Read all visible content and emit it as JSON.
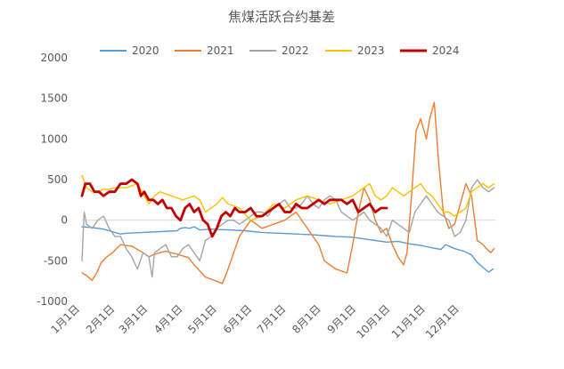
{
  "chart_data": {
    "type": "line",
    "title": "焦煤活跃合约基差",
    "xlabel": "",
    "ylabel": "",
    "ylim": [
      -1000,
      2000
    ],
    "yticks": [
      2000,
      1500,
      1000,
      500,
      0,
      -500,
      -1000
    ],
    "ytick_labels": [
      "2000",
      "1500",
      "1000",
      "500",
      "0",
      "-500",
      "-1000"
    ],
    "x_axis": "day of year",
    "xlim": [
      1,
      366
    ],
    "xtick_positions": [
      1,
      32,
      61,
      92,
      122,
      153,
      183,
      214,
      245,
      275,
      306,
      336
    ],
    "xtick_labels": [
      "1月1日",
      "2月1日",
      "3月1日",
      "4月1日",
      "5月1日",
      "6月1日",
      "7月1日",
      "8月1日",
      "9月1日",
      "10月1日",
      "11月1日",
      "12月1日"
    ],
    "grid": false,
    "zero_line": true,
    "legend_position": "top",
    "series": [
      {
        "name": "2020",
        "color": "#5b9bd5",
        "width": 1.4,
        "x": [
          1,
          10,
          20,
          30,
          35,
          40,
          55,
          70,
          85,
          88,
          92,
          96,
          100,
          105,
          115,
          130,
          145,
          160,
          175,
          190,
          205,
          215,
          225,
          240,
          250,
          260,
          270,
          280,
          290,
          300,
          310,
          318,
          322,
          330,
          338,
          345,
          350,
          355,
          360,
          364
        ],
        "values": [
          -80,
          -90,
          -110,
          -150,
          -170,
          -160,
          -150,
          -140,
          -130,
          -100,
          -90,
          -100,
          -80,
          -120,
          -110,
          -120,
          -130,
          -150,
          -160,
          -170,
          -180,
          -190,
          -200,
          -210,
          -230,
          -250,
          -270,
          -260,
          -290,
          -310,
          -340,
          -360,
          -300,
          -350,
          -380,
          -430,
          -520,
          -580,
          -640,
          -600
        ]
      },
      {
        "name": "2021",
        "color": "#ed7d31",
        "width": 1.4,
        "x": [
          1,
          5,
          10,
          14,
          18,
          23,
          28,
          35,
          45,
          55,
          60,
          65,
          75,
          85,
          95,
          100,
          110,
          118,
          125,
          130,
          135,
          140,
          145,
          150,
          160,
          170,
          180,
          190,
          200,
          210,
          215,
          225,
          235,
          240,
          245,
          250,
          255,
          260,
          265,
          270,
          275,
          280,
          285,
          288,
          292,
          296,
          300,
          305,
          308,
          312,
          316,
          320,
          325,
          330,
          335,
          340,
          345,
          350,
          355,
          358,
          362,
          365
        ],
        "values": [
          -650,
          -680,
          -740,
          -650,
          -520,
          -450,
          -400,
          -300,
          -320,
          -400,
          -450,
          -420,
          -380,
          -420,
          -460,
          -550,
          -700,
          -740,
          -780,
          -600,
          -400,
          -200,
          -100,
          0,
          -100,
          -50,
          0,
          100,
          -100,
          -300,
          -500,
          -600,
          -650,
          -300,
          100,
          400,
          250,
          0,
          -150,
          -100,
          -300,
          -450,
          -550,
          -400,
          300,
          1100,
          1250,
          1000,
          1250,
          1450,
          700,
          100,
          -100,
          -50,
          200,
          450,
          300,
          -250,
          -300,
          -350,
          -400,
          -350
        ]
      },
      {
        "name": "2022",
        "color": "#a5a5a5",
        "width": 1.4,
        "x": [
          1,
          3,
          5,
          10,
          15,
          20,
          25,
          30,
          35,
          40,
          45,
          50,
          55,
          60,
          63,
          65,
          70,
          75,
          80,
          85,
          90,
          95,
          100,
          105,
          110,
          115,
          120,
          125,
          130,
          135,
          140,
          145,
          150,
          155,
          160,
          165,
          170,
          175,
          180,
          185,
          190,
          195,
          200,
          205,
          210,
          215,
          220,
          225,
          230,
          235,
          240,
          245,
          250,
          255,
          260,
          265,
          270,
          275,
          280,
          285,
          290,
          295,
          300,
          305,
          310,
          315,
          320,
          325,
          330,
          335,
          340,
          345,
          350,
          355,
          360,
          365
        ],
        "values": [
          -500,
          100,
          -50,
          -100,
          0,
          50,
          -100,
          -200,
          -200,
          -350,
          -450,
          -600,
          -400,
          -450,
          -700,
          -400,
          -350,
          -300,
          -450,
          -450,
          -350,
          -300,
          -400,
          -500,
          -250,
          -200,
          -100,
          -50,
          0,
          0,
          -50,
          0,
          50,
          100,
          100,
          50,
          150,
          200,
          250,
          150,
          150,
          200,
          300,
          200,
          150,
          250,
          300,
          250,
          100,
          50,
          0,
          50,
          100,
          0,
          -50,
          -100,
          -200,
          0,
          -50,
          -100,
          -150,
          100,
          200,
          300,
          200,
          100,
          50,
          0,
          -200,
          -150,
          0,
          400,
          500,
          400,
          350,
          400
        ]
      },
      {
        "name": "2023",
        "color": "#ffc000",
        "width": 1.4,
        "x": [
          1,
          5,
          10,
          15,
          20,
          25,
          30,
          40,
          50,
          60,
          65,
          70,
          80,
          90,
          100,
          105,
          110,
          120,
          125,
          130,
          140,
          150,
          160,
          170,
          180,
          190,
          200,
          210,
          220,
          230,
          240,
          245,
          250,
          255,
          260,
          265,
          270,
          275,
          280,
          285,
          290,
          295,
          300,
          305,
          310,
          315,
          320,
          325,
          330,
          335,
          340,
          345,
          350,
          355,
          360,
          365
        ],
        "values": [
          550,
          400,
          350,
          350,
          380,
          380,
          400,
          400,
          450,
          200,
          300,
          350,
          300,
          250,
          300,
          250,
          100,
          200,
          280,
          200,
          150,
          0,
          50,
          200,
          150,
          250,
          300,
          250,
          200,
          250,
          300,
          350,
          400,
          450,
          300,
          250,
          300,
          400,
          350,
          300,
          350,
          400,
          450,
          350,
          300,
          200,
          100,
          100,
          50,
          100,
          150,
          350,
          400,
          450,
          400,
          450
        ]
      },
      {
        "name": "2024",
        "color": "#c00000",
        "width": 2.8,
        "x": [
          1,
          4,
          8,
          12,
          16,
          20,
          25,
          30,
          35,
          40,
          45,
          50,
          53,
          56,
          60,
          64,
          68,
          72,
          76,
          80,
          84,
          88,
          92,
          96,
          100,
          104,
          108,
          112,
          116,
          120,
          124,
          128,
          132,
          136,
          140,
          145,
          150,
          155,
          160,
          165,
          170,
          175,
          180,
          185,
          190,
          195,
          200,
          205,
          210,
          215,
          220,
          225,
          230,
          235,
          240,
          245,
          250,
          255,
          260,
          265,
          270
        ],
        "values": [
          300,
          450,
          450,
          350,
          350,
          300,
          350,
          350,
          450,
          450,
          500,
          450,
          300,
          350,
          250,
          250,
          200,
          250,
          150,
          150,
          50,
          0,
          150,
          200,
          100,
          150,
          0,
          -50,
          -200,
          -100,
          50,
          100,
          50,
          150,
          100,
          100,
          150,
          50,
          50,
          100,
          150,
          200,
          100,
          100,
          200,
          150,
          150,
          200,
          250,
          200,
          250,
          250,
          250,
          200,
          250,
          100,
          150,
          200,
          100,
          150,
          150
        ]
      }
    ]
  }
}
